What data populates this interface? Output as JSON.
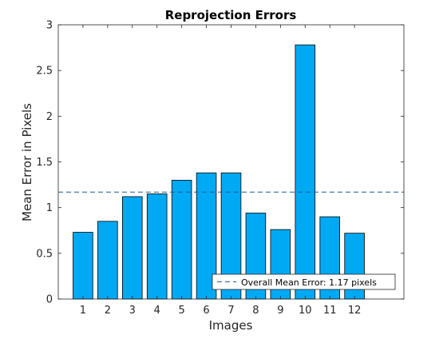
{
  "chart_data": {
    "type": "bar",
    "title": "Reprojection Errors",
    "xlabel": "Images",
    "ylabel": "Mean Error in Pixels",
    "categories": [
      "1",
      "2",
      "3",
      "4",
      "5",
      "6",
      "7",
      "8",
      "9",
      "10",
      "11",
      "12"
    ],
    "values": [
      0.73,
      0.85,
      1.12,
      1.15,
      1.3,
      1.38,
      1.38,
      0.94,
      0.76,
      2.78,
      0.9,
      0.72
    ],
    "xlim": [
      0,
      14
    ],
    "ylim": [
      0,
      3
    ],
    "yticks": [
      "0",
      "0.5",
      "1",
      "1.5",
      "2",
      "2.5",
      "3"
    ],
    "grid": false,
    "legend_position": "bottom-right",
    "reference_line": {
      "value": 1.17,
      "label": "Overall Mean Error: 1.17 pixels",
      "style": "dashed"
    },
    "colors": {
      "bar_fill": "#00a9f4",
      "bar_edge": "#000000",
      "reference_line": "#1f5b99",
      "axis": "#262626"
    }
  }
}
